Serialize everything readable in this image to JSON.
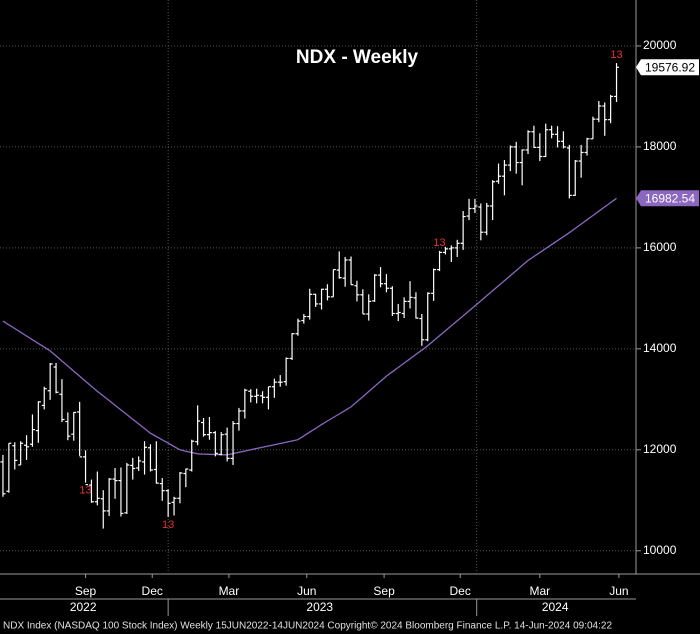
{
  "chart_data": {
    "type": "ohlc",
    "title": "NDX - Weekly",
    "bar_color": "#ffffff",
    "open": [
      11760,
      11180,
      12080,
      11700,
      12090,
      12110,
      12380,
      12880,
      13170,
      13640,
      13100,
      12560,
      12310,
      12750,
      11860,
      11300,
      10970,
      11030,
      10790,
      11420,
      11390,
      10750,
      11690,
      11640,
      11760,
      12040,
      11610,
      11330,
      11190,
      10960,
      11040,
      11530,
      11600,
      12160,
      12540,
      12300,
      12340,
      11910,
      12310,
      11830,
      12520,
      12770,
      13160,
      13060,
      13070,
      13040,
      13250,
      13340,
      13350,
      13810,
      14300,
      14560,
      14640,
      15080,
      14890,
      15180,
      15030,
      15560,
      15400,
      15760,
      15250,
      15070,
      14690,
      14950,
      15460,
      15290,
      15200,
      14700,
      14700,
      14940,
      15010,
      14600,
      14180,
      15100,
      15570,
      15910,
      15980,
      16000,
      16090,
      16630,
      16780,
      16810,
      16310,
      16830,
      17320,
      17420,
      17640,
      18000,
      17690,
      17940,
      18300,
      17990,
      17810,
      18340,
      18250,
      18110,
      17980,
      17040,
      17720,
      17890,
      18160,
      18550,
      18810,
      18540,
      19000
    ],
    "high": [
      11900,
      12130,
      12150,
      12170,
      12290,
      12700,
      12960,
      13250,
      13720,
      13720,
      13400,
      12740,
      12750,
      12950,
      11990,
      11410,
      11570,
      11200,
      11440,
      11640,
      11650,
      11740,
      11840,
      11870,
      12170,
      12110,
      12170,
      11440,
      11220,
      11070,
      11560,
      11630,
      12200,
      12880,
      12630,
      12650,
      12370,
      12350,
      12440,
      12570,
      12830,
      13210,
      13200,
      13210,
      13160,
      13250,
      13410,
      13480,
      13830,
      14310,
      14600,
      14690,
      15190,
      15090,
      15190,
      15280,
      15570,
      15930,
      15820,
      15830,
      15350,
      15180,
      15080,
      15480,
      15620,
      15480,
      15240,
      14890,
      15020,
      15340,
      15120,
      14690,
      15120,
      15590,
      15940,
      16020,
      16050,
      16160,
      16730,
      16970,
      16970,
      16880,
      16890,
      17340,
      17670,
      17740,
      18030,
      18100,
      17950,
      18330,
      18420,
      18270,
      18460,
      18420,
      18410,
      18310,
      18040,
      17740,
      18040,
      18180,
      18600,
      18910,
      18880,
      19030,
      19660
    ],
    "low": [
      11070,
      11150,
      11610,
      11700,
      11800,
      12060,
      12140,
      12800,
      12990,
      13120,
      12550,
      12190,
      12180,
      11880,
      11350,
      10950,
      10900,
      10440,
      10690,
      11030,
      10680,
      10730,
      11410,
      11580,
      11510,
      11570,
      11330,
      10990,
      10670,
      10700,
      10940,
      11260,
      11570,
      12090,
      12260,
      12200,
      11870,
      11890,
      11770,
      11700,
      12380,
      12620,
      12940,
      12920,
      12920,
      12800,
      13030,
      13250,
      13270,
      13780,
      14260,
      14500,
      14580,
      14830,
      14780,
      14960,
      15030,
      15390,
      15230,
      15270,
      14940,
      14690,
      14560,
      14930,
      15220,
      15120,
      14650,
      14550,
      14610,
      14800,
      14600,
      14060,
      14150,
      14950,
      15540,
      15870,
      15720,
      15820,
      15960,
      16550,
      16690,
      16150,
      16250,
      16550,
      17270,
      17040,
      17520,
      17470,
      17240,
      17860,
      17980,
      17720,
      17800,
      18170,
      17990,
      17970,
      16980,
      17030,
      17390,
      17830,
      18160,
      18490,
      18220,
      18470,
      18890
    ],
    "close": [
      11130,
      12130,
      11790,
      12130,
      12060,
      12400,
      12950,
      13210,
      13700,
      13140,
      12600,
      12270,
      12740,
      11860,
      11310,
      10970,
      11040,
      10790,
      11420,
      11390,
      10740,
      11700,
      11630,
      11780,
      12050,
      11600,
      11340,
      11190,
      10940,
      11040,
      11540,
      11620,
      12170,
      12570,
      12300,
      12340,
      11930,
      12300,
      11830,
      12520,
      12770,
      13180,
      13060,
      13080,
      13040,
      13250,
      13340,
      13340,
      13810,
      14300,
      14550,
      14640,
      15080,
      14890,
      15180,
      15030,
      15570,
      15410,
      15760,
      15270,
      15070,
      14690,
      14940,
      15460,
      15290,
      15200,
      14700,
      14720,
      14940,
      15020,
      14610,
      14180,
      15100,
      15570,
      15910,
      15980,
      16000,
      16090,
      16620,
      16780,
      16830,
      16310,
      16830,
      17310,
      17420,
      17640,
      18000,
      17690,
      17940,
      18300,
      17990,
      17810,
      18340,
      18250,
      18110,
      18000,
      17040,
      17720,
      17890,
      18160,
      18550,
      18810,
      18540,
      19000,
      19576.92
    ],
    "moving_average": {
      "color": "#8c67c0",
      "values": [
        14550,
        14476,
        14403,
        14329,
        14255,
        14181,
        14108,
        14034,
        13960,
        13860,
        13760,
        13660,
        13560,
        13460,
        13360,
        13260,
        13160,
        13068,
        12976,
        12884,
        12791,
        12699,
        12607,
        12514,
        12422,
        12330,
        12264,
        12198,
        12132,
        12066,
        12000,
        11973,
        11947,
        11920,
        11916,
        11912,
        11908,
        11904,
        11900,
        11925,
        11950,
        11975,
        12000,
        12025,
        12050,
        12075,
        12100,
        12125,
        12150,
        12175,
        12200,
        12275,
        12350,
        12425,
        12500,
        12570,
        12640,
        12710,
        12780,
        12850,
        12952,
        13053,
        13155,
        13257,
        13358,
        13460,
        13546,
        13631,
        13717,
        13803,
        13889,
        13974,
        14060,
        14159,
        14258,
        14357,
        14456,
        14554,
        14653,
        14752,
        14851,
        14950,
        15050,
        15150,
        15250,
        15350,
        15450,
        15550,
        15650,
        15750,
        15829,
        15907,
        15986,
        16064,
        16143,
        16221,
        16300,
        16385,
        16471,
        16556,
        16641,
        16726,
        16812,
        16897,
        16982.54
      ]
    },
    "annotations": [
      {
        "text": "13",
        "bar": 14,
        "placement": "below",
        "color": "#e8312f"
      },
      {
        "text": "13",
        "bar": 28,
        "placement": "below",
        "color": "#e8312f"
      },
      {
        "text": "13",
        "bar": 74,
        "placement": "above",
        "color": "#e8312f"
      },
      {
        "text": "13",
        "bar": 104,
        "placement": "above",
        "color": "#e8312f"
      }
    ],
    "xlim": [
      -0.5,
      107.3
    ],
    "xticks": [
      {
        "value": 14,
        "label": "Sep"
      },
      {
        "value": 25.3,
        "label": "Dec"
      },
      {
        "value": 38.3,
        "label": "Mar"
      },
      {
        "value": 51.5,
        "label": "Jun"
      },
      {
        "value": 64.6,
        "label": "Sep"
      },
      {
        "value": 77.5,
        "label": "Dec"
      },
      {
        "value": 91,
        "label": "Mar"
      },
      {
        "value": 104.4,
        "label": "Jun"
      }
    ],
    "year_ticks": [
      {
        "value": 13.6,
        "label": "2022"
      },
      {
        "value": 53.7,
        "label": "2023"
      },
      {
        "value": 93.6,
        "label": "2024"
      }
    ],
    "year_boundaries": [
      28,
      80.3
    ],
    "ylim": [
      9540,
      20910
    ],
    "yticks": [
      10000,
      12000,
      14000,
      16000,
      18000,
      20000
    ],
    "grid": true,
    "footer": "NDX Index (NASDAQ 100 Stock Index)  Weekly 15JUN2022-14JUN2024 Copyright© 2024 Bloomberg Finance L.P.  14-Jun-2024 09:04:22"
  }
}
